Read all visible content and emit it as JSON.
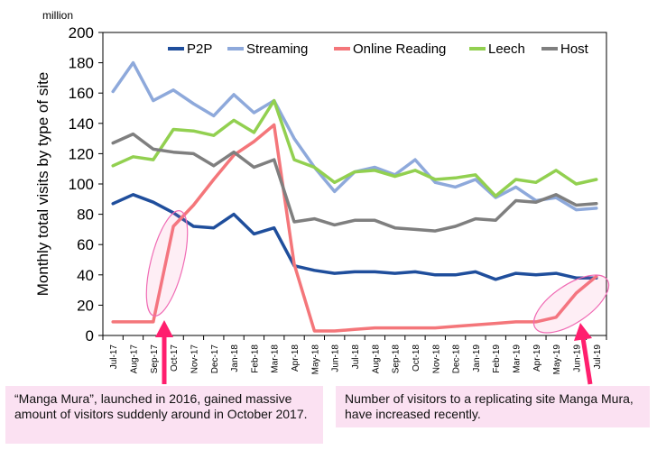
{
  "chart_data": {
    "type": "line",
    "unit_label": "million",
    "ylabel": "Monthly total visits by type of site",
    "xlabel": "",
    "ylim": [
      0,
      200
    ],
    "yticks": [
      0,
      20,
      40,
      60,
      80,
      100,
      120,
      140,
      160,
      180,
      200
    ],
    "grid": false,
    "legend": "top, inside plot",
    "categories": [
      "Jul-17",
      "Aug-17",
      "Sep-17",
      "Oct-17",
      "Nov-17",
      "Dec-17",
      "Jan-18",
      "Feb-18",
      "Mar-18",
      "Apr-18",
      "May-18",
      "Jun-18",
      "Jul-18",
      "Aug-18",
      "Sep-18",
      "Oct-18",
      "Nov-18",
      "Dec-18",
      "Jan-19",
      "Feb-19",
      "Mar-19",
      "Apr-19",
      "May-19",
      "Jun-19",
      "Jul-19"
    ],
    "series": [
      {
        "name": "P2P",
        "color": "#1f4e9c",
        "values": [
          87,
          93,
          88,
          81,
          72,
          71,
          80,
          67,
          71,
          46,
          43,
          41,
          42,
          42,
          41,
          42,
          40,
          40,
          42,
          37,
          41,
          40,
          41,
          38,
          38
        ]
      },
      {
        "name": "Streaming",
        "color": "#8ea9db",
        "values": [
          161,
          180,
          155,
          162,
          153,
          145,
          159,
          147,
          155,
          130,
          111,
          95,
          108,
          111,
          106,
          116,
          101,
          98,
          103,
          91,
          98,
          89,
          91,
          83,
          84
        ]
      },
      {
        "name": "Online Reading",
        "color": "#f4767a",
        "values": [
          9,
          9,
          9,
          72,
          86,
          103,
          119,
          128,
          139,
          47,
          3,
          3,
          4,
          5,
          5,
          5,
          5,
          6,
          7,
          8,
          9,
          9,
          12,
          28,
          39
        ]
      },
      {
        "name": "Leech",
        "color": "#92d050",
        "values": [
          112,
          118,
          116,
          136,
          135,
          132,
          142,
          134,
          155,
          116,
          111,
          101,
          108,
          109,
          105,
          109,
          103,
          104,
          106,
          92,
          103,
          101,
          109,
          100,
          103
        ]
      },
      {
        "name": "Host",
        "color": "#7f7f7f",
        "values": [
          127,
          133,
          123,
          121,
          120,
          112,
          121,
          111,
          116,
          75,
          77,
          73,
          76,
          76,
          71,
          70,
          69,
          72,
          77,
          76,
          89,
          88,
          93,
          86,
          87
        ]
      }
    ],
    "annotations": [
      {
        "text": "“Manga Mura”, launched in 2016, gained massive amount of visitors suddenly around in October 2017.",
        "target_category": "Sep-17",
        "color": "#ff1f6e"
      },
      {
        "text": "Number of visitors to a replicating site Manga Mura, have increased recently.",
        "target_category": "Jun-19",
        "color": "#ff1f6e"
      }
    ]
  },
  "annotation_text": {
    "left": "“Manga Mura”, launched in 2016, gained massive amount of visitors suddenly around in October 2017.",
    "right": "Number of visitors to a replicating site Manga Mura, have increased recently."
  }
}
